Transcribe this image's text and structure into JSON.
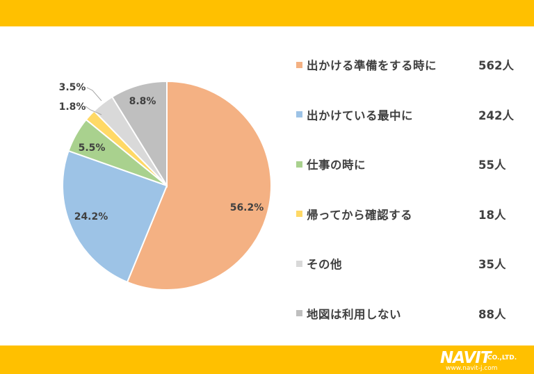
{
  "chart_data": {
    "type": "pie",
    "categories": [
      "出かける準備をする時に",
      "出かけている最中に",
      "仕事の時に",
      "帰ってから確認する",
      "その他",
      "地図は利用しない"
    ],
    "counts": [
      "562人",
      "242人",
      "55人",
      "18人",
      "35人",
      "88人"
    ],
    "values": [
      56.2,
      24.2,
      5.5,
      1.8,
      3.5,
      8.8
    ],
    "value_labels": [
      "56.2%",
      "24.2%",
      "5.5%",
      "1.8%",
      "3.5%",
      "8.8%"
    ],
    "colors": [
      "#F4B183",
      "#9DC3E6",
      "#A9D18E",
      "#FFD966",
      "#D9D9D9",
      "#BFBFBF"
    ],
    "legend_position": "right",
    "start_angle": "12 o'clock",
    "direction": "clockwise"
  },
  "branding": {
    "logo_main": "NAVIT",
    "logo_suffix": "CO.,LTD.",
    "logo_url": "www.navit-j.com"
  }
}
